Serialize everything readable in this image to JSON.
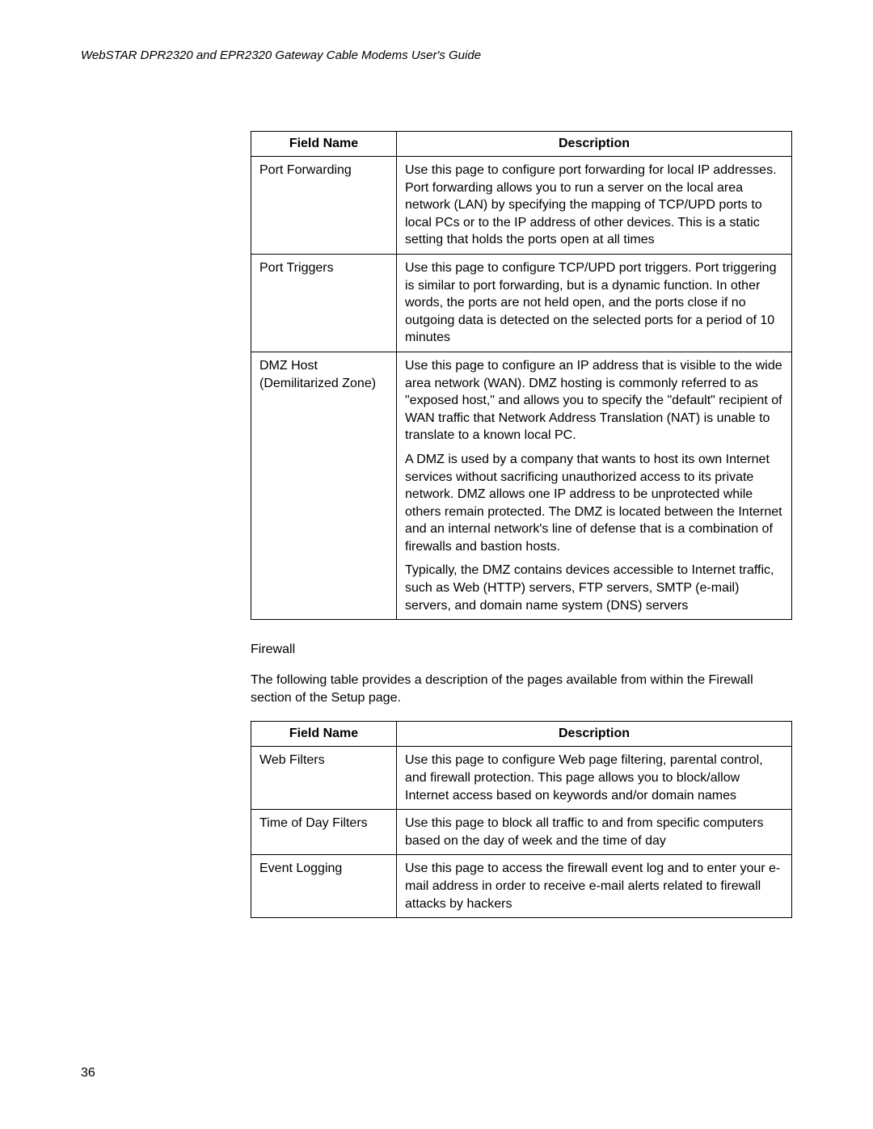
{
  "header": "WebSTAR DPR2320 and EPR2320 Gateway Cable Modems User's Guide",
  "pageNumber": "36",
  "table1": {
    "headers": {
      "fieldName": "Field Name",
      "description": "Description"
    },
    "rows": [
      {
        "field": "Port Forwarding",
        "desc": [
          "Use this page to configure port forwarding for local IP addresses. Port forwarding allows you to run a server on the local area network (LAN) by specifying the mapping of TCP/UPD ports to local PCs or to the IP address of other devices. This is a static setting that holds the ports open at all times"
        ]
      },
      {
        "field": "Port Triggers",
        "desc": [
          "Use this page to configure TCP/UPD port triggers. Port triggering is similar to port forwarding, but is a dynamic function. In other words, the ports are not held open, and the ports close if no outgoing data is detected on the selected ports for a period of 10 minutes"
        ]
      },
      {
        "field": "DMZ Host (Demilitarized Zone)",
        "desc": [
          "Use this page to configure an IP address that is visible to the wide area network (WAN). DMZ hosting is commonly referred to as \"exposed host,\" and allows you to specify the \"default\" recipient of WAN traffic that Network Address Translation (NAT) is unable to translate to a known local PC.",
          "A DMZ is used by a company that wants to host its own Internet services without sacrificing unauthorized access to its private network. DMZ allows one IP address to be unprotected while others remain protected. The DMZ is located between the Internet and an internal network's line of defense that is a combination of firewalls and bastion hosts.",
          "Typically, the DMZ contains devices accessible to Internet traffic, such as Web (HTTP) servers, FTP servers, SMTP (e-mail) servers, and domain name system (DNS) servers"
        ]
      }
    ]
  },
  "section": {
    "title": "Firewall",
    "intro": "The following table provides a description of the pages available from within the Firewall section of the Setup page."
  },
  "table2": {
    "headers": {
      "fieldName": "Field Name",
      "description": "Description"
    },
    "rows": [
      {
        "field": "Web Filters",
        "desc": [
          "Use this page to configure Web page filtering, parental control, and firewall protection. This page allows you to block/allow Internet access based on keywords and/or domain names"
        ]
      },
      {
        "field": "Time of Day Filters",
        "desc": [
          "Use this page to block all traffic to and from specific computers based on the day of week and the time of day"
        ]
      },
      {
        "field": "Event Logging",
        "desc": [
          "Use this page to access the firewall event log and to enter your e-mail address in order to receive e-mail alerts related to firewall attacks by hackers"
        ]
      }
    ]
  }
}
